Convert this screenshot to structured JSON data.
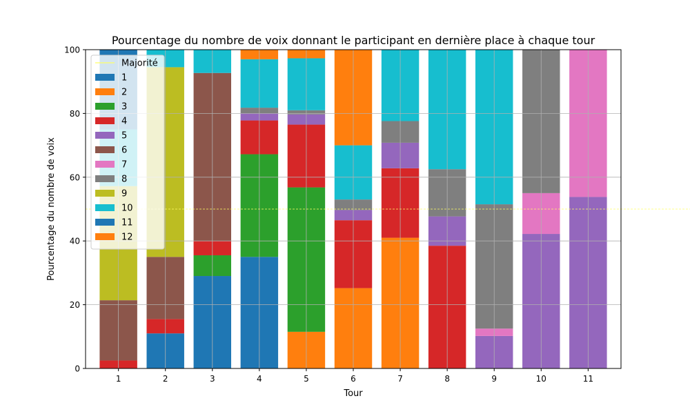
{
  "chart_data": {
    "type": "bar",
    "stacked": true,
    "title": "Pourcentage du nombre de voix donnant le participant en dernière place à chaque tour",
    "xlabel": "Tour",
    "ylabel": "Pourcentage du nombre de voix",
    "ylim": [
      0,
      100
    ],
    "yticks": [
      0,
      20,
      40,
      60,
      80,
      100
    ],
    "grid": true,
    "legend_position": "top-left",
    "categories": [
      "1",
      "2",
      "3",
      "4",
      "5",
      "6",
      "7",
      "8",
      "9",
      "10",
      "11"
    ],
    "reference_line": {
      "name": "Majorité",
      "value": 50,
      "color": "#ffff66"
    },
    "series": [
      {
        "name": "1",
        "color": "#1f77b4",
        "values": [
          0,
          11,
          29,
          35,
          0,
          0,
          0,
          0,
          0,
          0,
          0
        ]
      },
      {
        "name": "2",
        "color": "#ff7f0e",
        "values": [
          0,
          0,
          0,
          0,
          11.5,
          25.2,
          41,
          0,
          0,
          0,
          0
        ]
      },
      {
        "name": "3",
        "color": "#2ca02c",
        "values": [
          0,
          0,
          6.5,
          32.2,
          45.3,
          0,
          0,
          0,
          0,
          0,
          0
        ]
      },
      {
        "name": "4",
        "color": "#d62728",
        "values": [
          2.5,
          4.5,
          4.5,
          10.6,
          19.7,
          21.3,
          21.8,
          38.5,
          0,
          0,
          0
        ]
      },
      {
        "name": "5",
        "color": "#9467bd",
        "values": [
          0,
          0,
          0,
          2.2,
          3.2,
          3.2,
          8,
          9.2,
          10.2,
          42.2,
          53.8
        ]
      },
      {
        "name": "6",
        "color": "#8c564b",
        "values": [
          18.9,
          19.5,
          52.7,
          0,
          0,
          0,
          0,
          0,
          0,
          0,
          0
        ]
      },
      {
        "name": "7",
        "color": "#e377c2",
        "values": [
          0,
          0,
          0,
          0,
          0,
          0,
          0,
          0,
          2.3,
          12.8,
          46.2
        ]
      },
      {
        "name": "8",
        "color": "#7f7f7f",
        "values": [
          0,
          0,
          0,
          1.8,
          1.3,
          3.3,
          6.8,
          14.8,
          39,
          45,
          0
        ]
      },
      {
        "name": "9",
        "color": "#bcbd22",
        "values": [
          35.8,
          59.5,
          0,
          0,
          0,
          0,
          0,
          0,
          0,
          0,
          0
        ]
      },
      {
        "name": "10",
        "color": "#17becf",
        "values": [
          17.8,
          5.5,
          7.3,
          15.2,
          16.3,
          17,
          22.4,
          37.5,
          48.5,
          0,
          0
        ]
      },
      {
        "name": "11",
        "color": "#1f77b4",
        "values": [
          25,
          0,
          0,
          0,
          0,
          0,
          0,
          0,
          0,
          0,
          0
        ]
      },
      {
        "name": "12",
        "color": "#ff7f0e",
        "values": [
          0,
          0,
          0,
          3,
          2.7,
          30,
          0,
          0,
          0,
          0,
          0
        ]
      }
    ]
  }
}
